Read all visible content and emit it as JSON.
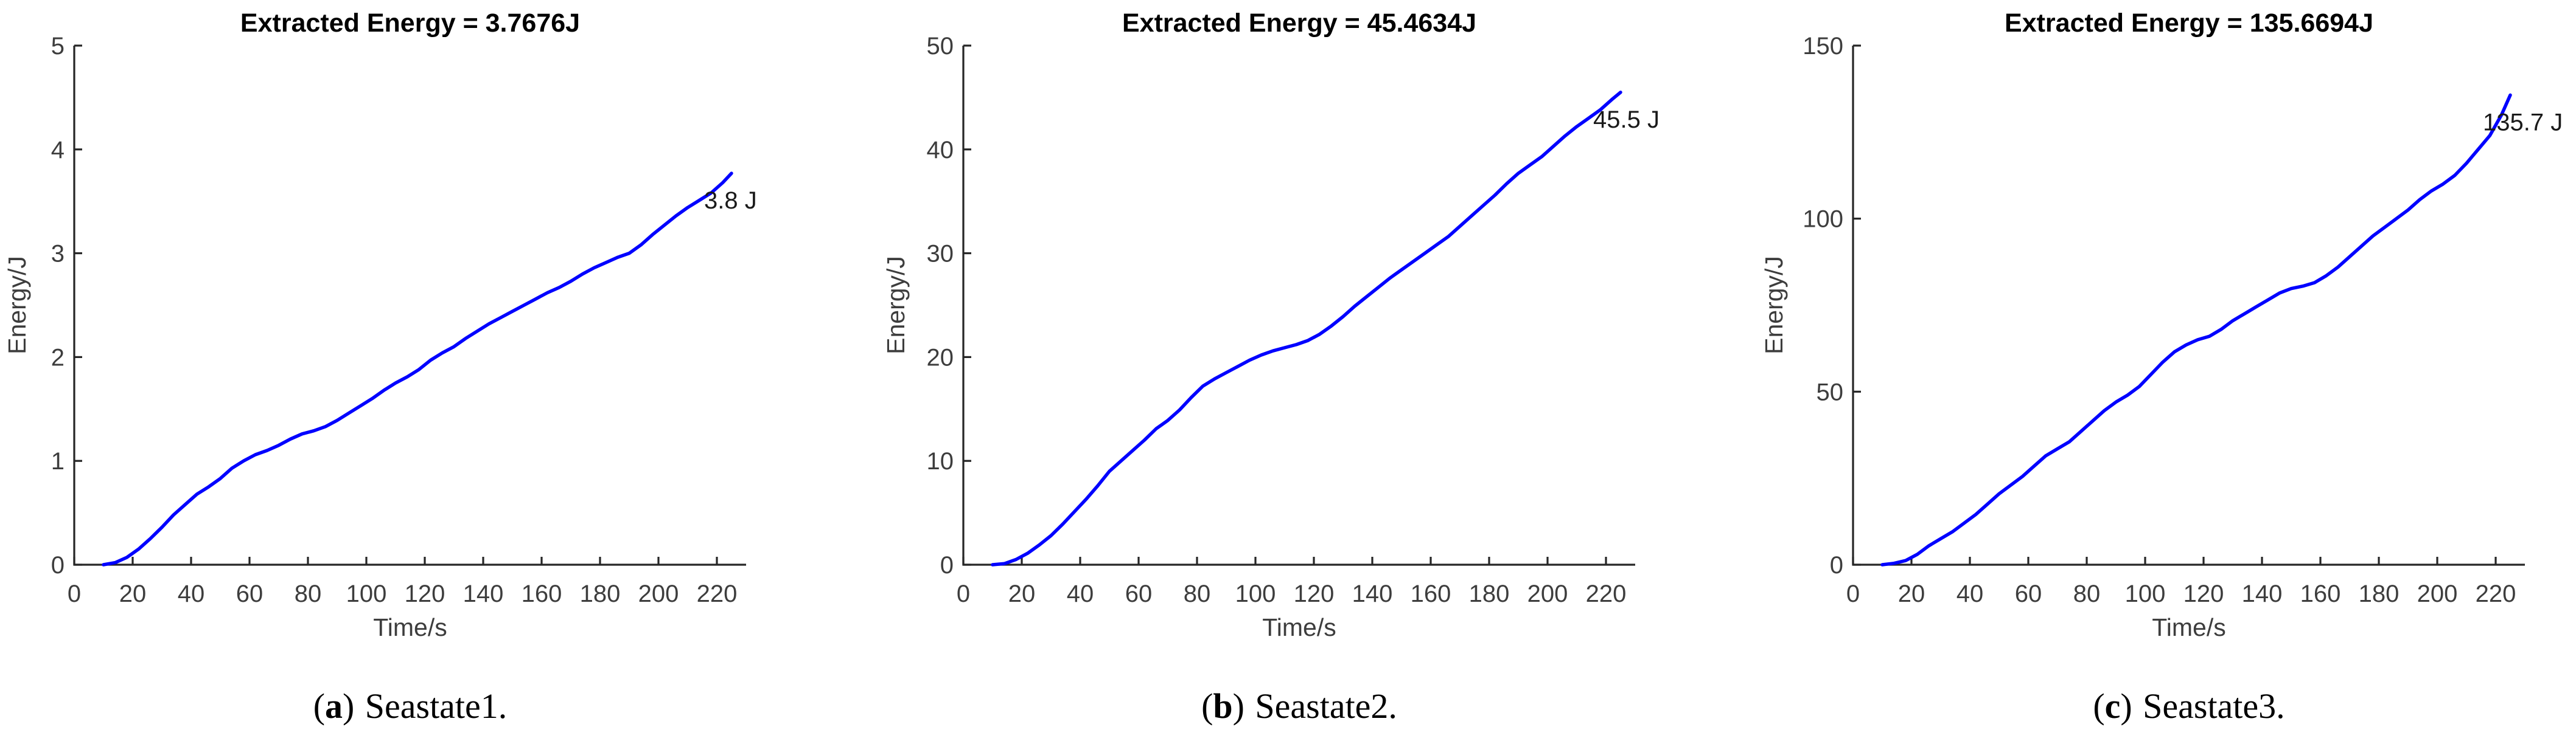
{
  "page": {
    "background": "#ffffff",
    "figure_kind": "three cumulative extracted-energy line plots"
  },
  "colors": {
    "line": "#0000ff",
    "axis": "#262626",
    "tick_label": "#3d3d3d",
    "axis_label": "#3d3d3d",
    "title": "#000000",
    "annotation": "#1a1a1a",
    "caption": "#000000"
  },
  "captions": [
    {
      "open": "(",
      "letter": "a",
      "close": ")",
      "text": "Seastate1."
    },
    {
      "open": "(",
      "letter": "b",
      "close": ")",
      "text": "Seastate2."
    },
    {
      "open": "(",
      "letter": "c",
      "close": ")",
      "text": "Seastate3."
    }
  ],
  "chart_data": [
    {
      "type": "line",
      "title": "Extracted Energy = 3.7676J",
      "xlabel": "Time/s",
      "ylabel": "Energy/J",
      "xlim": [
        0,
        230
      ],
      "ylim": [
        0,
        5
      ],
      "x_ticks": [
        0,
        20,
        40,
        60,
        80,
        100,
        120,
        140,
        160,
        180,
        200,
        220
      ],
      "y_ticks": [
        0,
        1,
        2,
        3,
        4,
        5
      ],
      "grid": false,
      "legend": "none",
      "line_color": "#0000ff",
      "annotation": "3.8 J",
      "series": [
        {
          "name": "extracted-energy",
          "x": [
            10,
            14,
            18,
            22,
            26,
            30,
            34,
            38,
            42,
            46,
            50,
            54,
            58,
            62,
            66,
            70,
            74,
            78,
            82,
            86,
            90,
            94,
            98,
            102,
            106,
            110,
            114,
            118,
            122,
            126,
            130,
            134,
            138,
            142,
            146,
            150,
            154,
            158,
            162,
            166,
            170,
            174,
            178,
            182,
            186,
            190,
            194,
            198,
            202,
            206,
            210,
            214,
            218,
            222,
            225
          ],
          "y": [
            0,
            0.02,
            0.07,
            0.15,
            0.25,
            0.36,
            0.48,
            0.58,
            0.68,
            0.75,
            0.83,
            0.93,
            1.0,
            1.06,
            1.1,
            1.15,
            1.21,
            1.26,
            1.29,
            1.33,
            1.39,
            1.46,
            1.53,
            1.6,
            1.68,
            1.75,
            1.81,
            1.88,
            1.97,
            2.04,
            2.1,
            2.18,
            2.25,
            2.32,
            2.38,
            2.44,
            2.5,
            2.56,
            2.62,
            2.67,
            2.73,
            2.8,
            2.86,
            2.91,
            2.96,
            3.0,
            3.08,
            3.18,
            3.27,
            3.36,
            3.44,
            3.51,
            3.58,
            3.68,
            3.77
          ]
        }
      ]
    },
    {
      "type": "line",
      "title": "Extracted Energy = 45.4634J",
      "xlabel": "Time/s",
      "ylabel": "Energy/J",
      "xlim": [
        0,
        230
      ],
      "ylim": [
        0,
        50
      ],
      "x_ticks": [
        0,
        20,
        40,
        60,
        80,
        100,
        120,
        140,
        160,
        180,
        200,
        220
      ],
      "y_ticks": [
        0,
        10,
        20,
        30,
        40,
        50
      ],
      "grid": false,
      "legend": "none",
      "line_color": "#0000ff",
      "annotation": "45.5 J",
      "series": [
        {
          "name": "extracted-energy",
          "x": [
            10,
            14,
            18,
            22,
            26,
            30,
            34,
            38,
            42,
            46,
            50,
            54,
            58,
            62,
            66,
            70,
            74,
            78,
            82,
            86,
            90,
            94,
            98,
            102,
            106,
            110,
            114,
            118,
            122,
            126,
            130,
            134,
            138,
            142,
            146,
            150,
            154,
            158,
            162,
            166,
            170,
            174,
            178,
            182,
            186,
            190,
            194,
            198,
            202,
            206,
            210,
            214,
            218,
            222,
            225
          ],
          "y": [
            0,
            0.1,
            0.5,
            1.1,
            1.9,
            2.8,
            3.9,
            5.1,
            6.3,
            7.6,
            9.0,
            10.0,
            11.0,
            12.0,
            13.1,
            13.9,
            14.9,
            16.1,
            17.2,
            17.9,
            18.5,
            19.1,
            19.7,
            20.2,
            20.6,
            20.9,
            21.2,
            21.6,
            22.2,
            23.0,
            23.9,
            24.9,
            25.8,
            26.7,
            27.6,
            28.4,
            29.2,
            30.0,
            30.8,
            31.6,
            32.6,
            33.6,
            34.6,
            35.6,
            36.7,
            37.7,
            38.5,
            39.3,
            40.3,
            41.3,
            42.2,
            43.0,
            43.8,
            44.8,
            45.5
          ]
        }
      ]
    },
    {
      "type": "line",
      "title": "Extracted Energy = 135.6694J",
      "xlabel": "Time/s",
      "ylabel": "Energy/J",
      "xlim": [
        0,
        230
      ],
      "ylim": [
        0,
        150
      ],
      "x_ticks": [
        0,
        20,
        40,
        60,
        80,
        100,
        120,
        140,
        160,
        180,
        200,
        220
      ],
      "y_ticks": [
        0,
        50,
        100,
        150
      ],
      "grid": false,
      "legend": "none",
      "line_color": "#0000ff",
      "annotation": "135.7 J",
      "series": [
        {
          "name": "extracted-energy",
          "x": [
            10,
            14,
            18,
            22,
            26,
            30,
            34,
            38,
            42,
            46,
            50,
            54,
            58,
            62,
            66,
            70,
            74,
            78,
            82,
            86,
            90,
            94,
            98,
            102,
            106,
            110,
            114,
            118,
            122,
            126,
            130,
            134,
            138,
            142,
            146,
            150,
            154,
            158,
            162,
            166,
            170,
            174,
            178,
            182,
            186,
            190,
            194,
            198,
            202,
            206,
            210,
            214,
            218,
            222,
            225
          ],
          "y": [
            0,
            0.4,
            1.2,
            3.0,
            5.5,
            7.5,
            9.5,
            12.0,
            14.5,
            17.5,
            20.5,
            23.0,
            25.5,
            28.5,
            31.5,
            33.5,
            35.5,
            38.5,
            41.5,
            44.5,
            47.0,
            49.0,
            51.5,
            55.0,
            58.5,
            61.5,
            63.5,
            65.0,
            66.0,
            68.0,
            70.5,
            72.5,
            74.5,
            76.5,
            78.5,
            79.8,
            80.5,
            81.5,
            83.5,
            86.0,
            89.0,
            92.0,
            95.0,
            97.5,
            100.0,
            102.5,
            105.5,
            108.0,
            110.0,
            112.5,
            116.0,
            120.0,
            124.0,
            130.0,
            135.7
          ]
        }
      ]
    }
  ]
}
